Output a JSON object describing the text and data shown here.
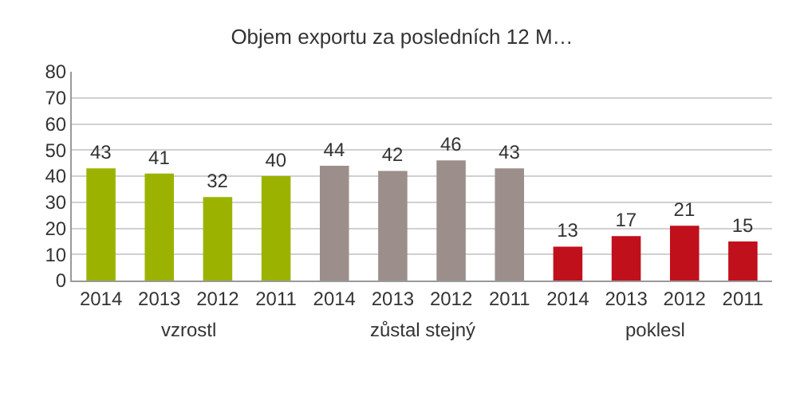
{
  "chart_data": {
    "type": "bar",
    "title": "Objem exportu za posledních 12 M…",
    "categories": [
      "2014",
      "2013",
      "2012",
      "2011",
      "2014",
      "2013",
      "2012",
      "2011",
      "2014",
      "2013",
      "2012",
      "2011"
    ],
    "values": [
      43,
      41,
      32,
      40,
      44,
      42,
      46,
      43,
      13,
      17,
      21,
      15
    ],
    "colors": [
      "#9bb300",
      "#9bb300",
      "#9bb300",
      "#9bb300",
      "#9c8f8b",
      "#9c8f8b",
      "#9c8f8b",
      "#9c8f8b",
      "#c0101c",
      "#c0101c",
      "#c0101c",
      "#c0101c"
    ],
    "annotations": [
      "vzrostl",
      "zůstal stejný",
      "poklesl"
    ],
    "ylim": [
      0,
      80
    ],
    "yticks": [
      0,
      10,
      20,
      30,
      40,
      50,
      60,
      70,
      80
    ],
    "grid": true,
    "data_labels": true
  }
}
